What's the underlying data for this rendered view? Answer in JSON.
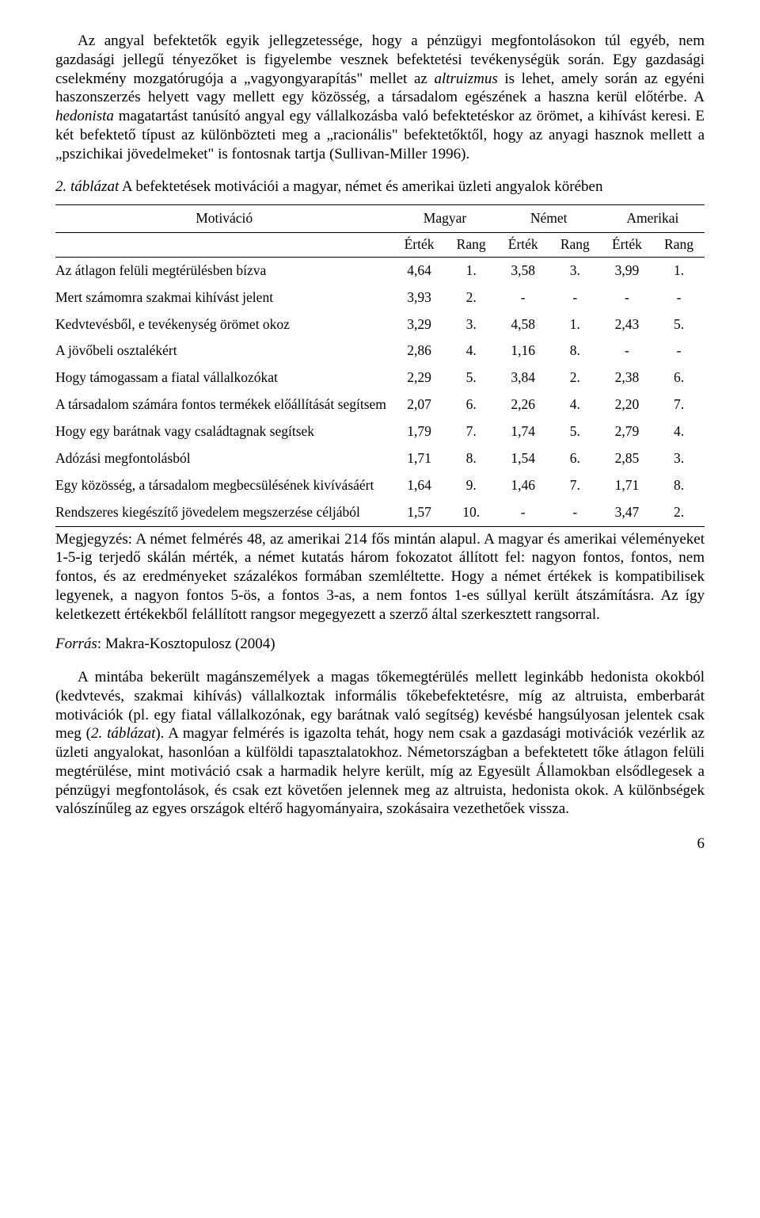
{
  "para1": "Az angyal befektetők egyik jellegzetessége, hogy a pénzügyi megfontolásokon túl egyéb, nem gazdasági jellegű tényezőket is figyelembe vesznek befektetési tevékenységük során. Egy gazdasági cselekmény mozgatórugója a „vagyongyarapítás\" mellet az ",
  "para1_it1": "altruizmus",
  "para1_b": " is lehet, amely során az egyéni haszonszerzés helyett vagy mellett egy közösség, a társadalom egészének a haszna kerül előtérbe. A ",
  "para1_it2": "hedonista",
  "para1_c": " magatartást tanúsító angyal egy vállalkozásba való befektetéskor az örömet, a kihívást keresi. E két befektető típust az különbözteti meg a „racionális\" befektetőktől, hogy az anyagi hasznok mellett a „pszichikai jövedelmeket\" is fontosnak tartja (Sullivan-Miller 1996).",
  "caption_it": "2. táblázat",
  "caption_rest": " A befektetések motivációi a magyar, német és amerikai üzleti angyalok körében",
  "th_motiv": "Motiváció",
  "th_magyar": "Magyar",
  "th_nemet": "Német",
  "th_amerikai": "Amerikai",
  "th_ertek": "Érték",
  "th_rang": "Rang",
  "rows": [
    {
      "m": "Az átlagon felüli megtérülésben bízva",
      "v": [
        "4,64",
        "1.",
        "3,58",
        "3.",
        "3,99",
        "1."
      ]
    },
    {
      "m": "Mert számomra szakmai kihívást jelent",
      "v": [
        "3,93",
        "2.",
        "-",
        "-",
        "-",
        "-"
      ]
    },
    {
      "m": "Kedvtevésből, e tevékenység örömet okoz",
      "v": [
        "3,29",
        "3.",
        "4,58",
        "1.",
        "2,43",
        "5."
      ]
    },
    {
      "m": "A jövőbeli osztalékért",
      "v": [
        "2,86",
        "4.",
        "1,16",
        "8.",
        "-",
        "-"
      ]
    },
    {
      "m": "Hogy támogassam a fiatal vállalkozókat",
      "v": [
        "2,29",
        "5.",
        "3,84",
        "2.",
        "2,38",
        "6."
      ]
    },
    {
      "m": "A társadalom számára fontos termékek előállítását segítsem",
      "v": [
        "2,07",
        "6.",
        "2,26",
        "4.",
        "2,20",
        "7."
      ]
    },
    {
      "m": "Hogy egy barátnak vagy családtagnak segítsek",
      "v": [
        "1,79",
        "7.",
        "1,74",
        "5.",
        "2,79",
        "4."
      ]
    },
    {
      "m": "Adózási megfontolásból",
      "v": [
        "1,71",
        "8.",
        "1,54",
        "6.",
        "2,85",
        "3."
      ]
    },
    {
      "m": "Egy közösség, a társadalom megbecsülésének kivívásáért",
      "v": [
        "1,64",
        "9.",
        "1,46",
        "7.",
        "1,71",
        "8."
      ]
    },
    {
      "m": "Rendszeres kiegészítő jövedelem megszerzése céljából",
      "v": [
        "1,57",
        "10.",
        "-",
        "-",
        "3,47",
        "2."
      ]
    }
  ],
  "note": "Megjegyzés: A német felmérés 48, az amerikai 214 fős mintán alapul. A magyar és amerikai véleményeket 1-5-ig terjedő skálán mérték, a német kutatás három fokozatot állított fel: nagyon fontos, fontos, nem fontos, és az eredményeket százalékos formában szemléltette. Hogy a német értékek is kompatibilisek legyenek, a nagyon fontos 5-ös, a fontos 3-as, a nem fontos 1-es súllyal került átszámításra. Az így keletkezett értékekből felállított rangsor megegyezett a szerző által szerkesztett rangsorral.",
  "source_it": "Forrás",
  "source_rest": ": Makra-Kosztopulosz (2004)",
  "para2_a": "A mintába bekerült magánszemélyek a magas tőkemegtérülés mellett leginkább hedonista okokból (kedvtevés, szakmai kihívás) vállalkoztak informális tőkebefektetésre, míg az altruista, emberbarát motivációk (pl. egy fiatal vállalkozónak, egy barátnak való segítség) kevésbé hangsúlyosan jelentek csak meg (",
  "para2_it": "2. táblázat",
  "para2_b": "). A magyar felmérés is igazolta tehát, hogy nem csak a gazdasági motivációk vezérlik az üzleti angyalokat, hasonlóan a külföldi tapasztalatokhoz. Németországban a befektetett tőke átlagon felüli megtérülése, mint motiváció csak a harmadik helyre került, míg az Egyesült Államokban elsődlegesek a pénzügyi megfontolások, és csak ezt követően jelennek meg az altruista, hedonista okok. A különbségek valószínűleg az egyes országok eltérő hagyományaira, szokásaira vezethetőek vissza.",
  "pagenum": "6"
}
